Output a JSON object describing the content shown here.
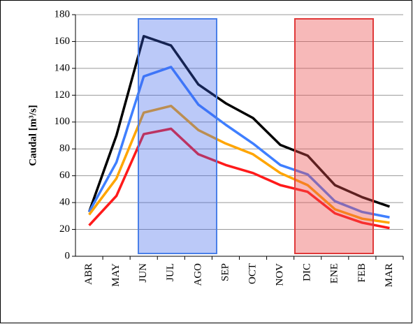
{
  "chart_data": {
    "type": "line",
    "y_label": "Caudal [m³/s]",
    "categories": [
      "ABR",
      "MAY",
      "JUN",
      "JUL",
      "AGO",
      "SEP",
      "OCT",
      "NOV",
      "DIC",
      "ENE",
      "FEB",
      "MAR"
    ],
    "series": [
      {
        "color": "#000000",
        "values": [
          33,
          90,
          164,
          157,
          128,
          114,
          103,
          83,
          75,
          53,
          44,
          37
        ]
      },
      {
        "color": "#3f7fff",
        "values": [
          33,
          70,
          134,
          141,
          113,
          98,
          84,
          68,
          61,
          41,
          33,
          29
        ]
      },
      {
        "color": "#ffa500",
        "values": [
          31,
          58,
          107,
          112,
          94,
          84,
          76,
          62,
          53,
          35,
          28,
          25
        ]
      },
      {
        "color": "#ff1a1a",
        "values": [
          23,
          45,
          91,
          95,
          76,
          68,
          62,
          53,
          48,
          32,
          25,
          21
        ]
      }
    ],
    "ylim": [
      0,
      180
    ],
    "yticks": [
      0,
      20,
      40,
      60,
      80,
      100,
      120,
      140,
      160,
      180
    ],
    "grid": true
  }
}
